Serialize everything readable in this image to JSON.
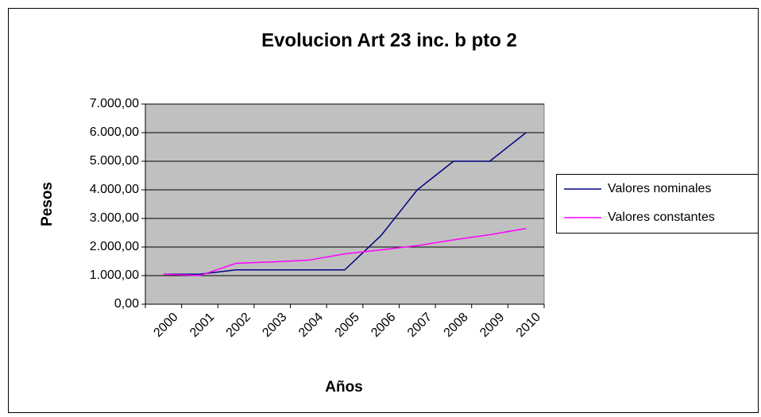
{
  "chart_data": {
    "type": "line",
    "title": "Evolucion Art 23 inc. b pto 2",
    "x_label": "Años",
    "y_label": "Pesos",
    "categories": [
      "2000",
      "2001",
      "2002",
      "2003",
      "2004",
      "2005",
      "2006",
      "2007",
      "2008",
      "2009",
      "2010"
    ],
    "series": [
      {
        "name": "Valores nominales",
        "color": "#000080",
        "values": [
          1050,
          1050,
          1200,
          1200,
          1200,
          1200,
          2400,
          4000,
          5000,
          5000,
          6000
        ]
      },
      {
        "name": "Valores constantes",
        "color": "#ff00ff",
        "values": [
          1050,
          1000,
          1430,
          1480,
          1540,
          1760,
          1900,
          2050,
          2250,
          2430,
          2650
        ]
      }
    ],
    "ylim": [
      0,
      7000
    ],
    "yticks": [
      {
        "value": 0,
        "label": "0,00"
      },
      {
        "value": 1000,
        "label": "1.000,00"
      },
      {
        "value": 2000,
        "label": "2.000,00"
      },
      {
        "value": 3000,
        "label": "3.000,00"
      },
      {
        "value": 4000,
        "label": "4.000,00"
      },
      {
        "value": 5000,
        "label": "5.000,00"
      },
      {
        "value": 6000,
        "label": "6.000,00"
      },
      {
        "value": 7000,
        "label": "7.000,00"
      }
    ],
    "grid": true,
    "legend": "right",
    "plot_background": "#c0c0c0"
  }
}
